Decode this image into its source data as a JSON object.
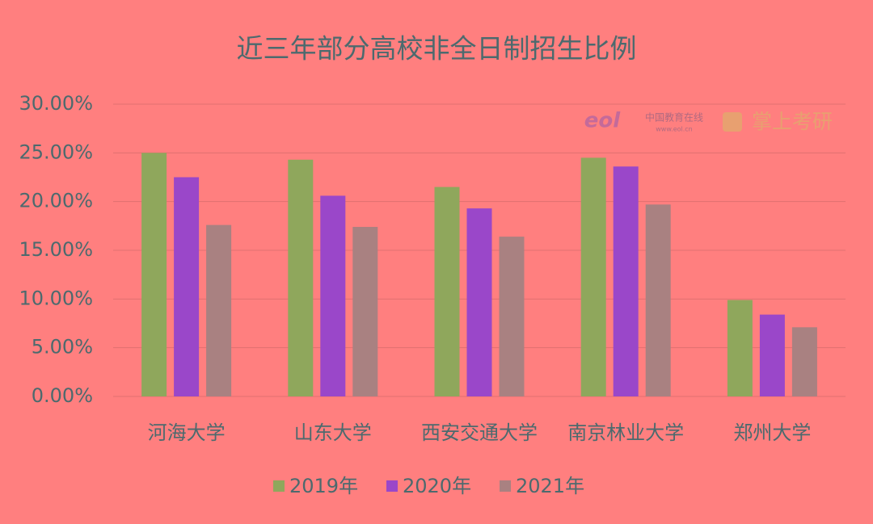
{
  "chart_data": {
    "type": "bar",
    "title": "近三年部分高校非全日制招生比例",
    "categories": [
      "河海大学",
      "山东大学",
      "西安交通大学",
      "南京林业大学",
      "郑州大学"
    ],
    "series": [
      {
        "name": "2019年",
        "color": "#8fa75c",
        "values": [
          25.0,
          24.3,
          21.5,
          24.5,
          9.9
        ]
      },
      {
        "name": "2020年",
        "color": "#9a47c9",
        "values": [
          22.5,
          20.6,
          19.3,
          23.6,
          8.4
        ]
      },
      {
        "name": "2021年",
        "color": "#a98181",
        "values": [
          17.6,
          17.4,
          16.4,
          19.7,
          7.1
        ]
      }
    ],
    "ylim": [
      0,
      30
    ],
    "yticks": [
      {
        "value": 0,
        "label": "0.00%"
      },
      {
        "value": 5,
        "label": "5.00%"
      },
      {
        "value": 10,
        "label": "10.00%"
      },
      {
        "value": 15,
        "label": "15.00%"
      },
      {
        "value": 20,
        "label": "20.00%"
      },
      {
        "value": 25,
        "label": "25.00%"
      },
      {
        "value": 30,
        "label": "30.00%"
      }
    ],
    "grid": true,
    "legend": "bottom",
    "annotations": [
      "eol",
      "中国教育在线",
      "www.eol.cn",
      "掌上考研"
    ]
  }
}
